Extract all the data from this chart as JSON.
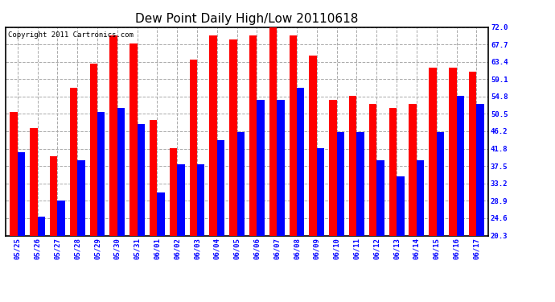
{
  "title": "Dew Point Daily High/Low 20110618",
  "copyright": "Copyright 2011 Cartronics.com",
  "dates": [
    "05/25",
    "05/26",
    "05/27",
    "05/28",
    "05/29",
    "05/30",
    "05/31",
    "06/01",
    "06/02",
    "06/03",
    "06/04",
    "06/05",
    "06/06",
    "06/07",
    "06/08",
    "06/09",
    "06/10",
    "06/11",
    "06/12",
    "06/13",
    "06/14",
    "06/15",
    "06/16",
    "06/17"
  ],
  "high": [
    51,
    47,
    40,
    57,
    63,
    70,
    68,
    49,
    42,
    64,
    70,
    69,
    70,
    73,
    70,
    65,
    54,
    55,
    53,
    52,
    53,
    62,
    62,
    61
  ],
  "low": [
    41,
    25,
    29,
    39,
    51,
    52,
    48,
    31,
    38,
    38,
    44,
    46,
    54,
    54,
    57,
    42,
    46,
    46,
    39,
    35,
    39,
    46,
    55,
    53
  ],
  "high_color": "#FF0000",
  "low_color": "#0000FF",
  "background_color": "#FFFFFF",
  "plot_bg_color": "#FFFFFF",
  "grid_color": "#AAAAAA",
  "yticks": [
    20.3,
    24.6,
    28.9,
    33.2,
    37.5,
    41.8,
    46.2,
    50.5,
    54.8,
    59.1,
    63.4,
    67.7,
    72.0
  ],
  "ymin": 20.3,
  "ymax": 72.0,
  "bar_width": 0.38,
  "title_fontsize": 11,
  "tick_fontsize": 6.5,
  "copyright_fontsize": 6.5
}
